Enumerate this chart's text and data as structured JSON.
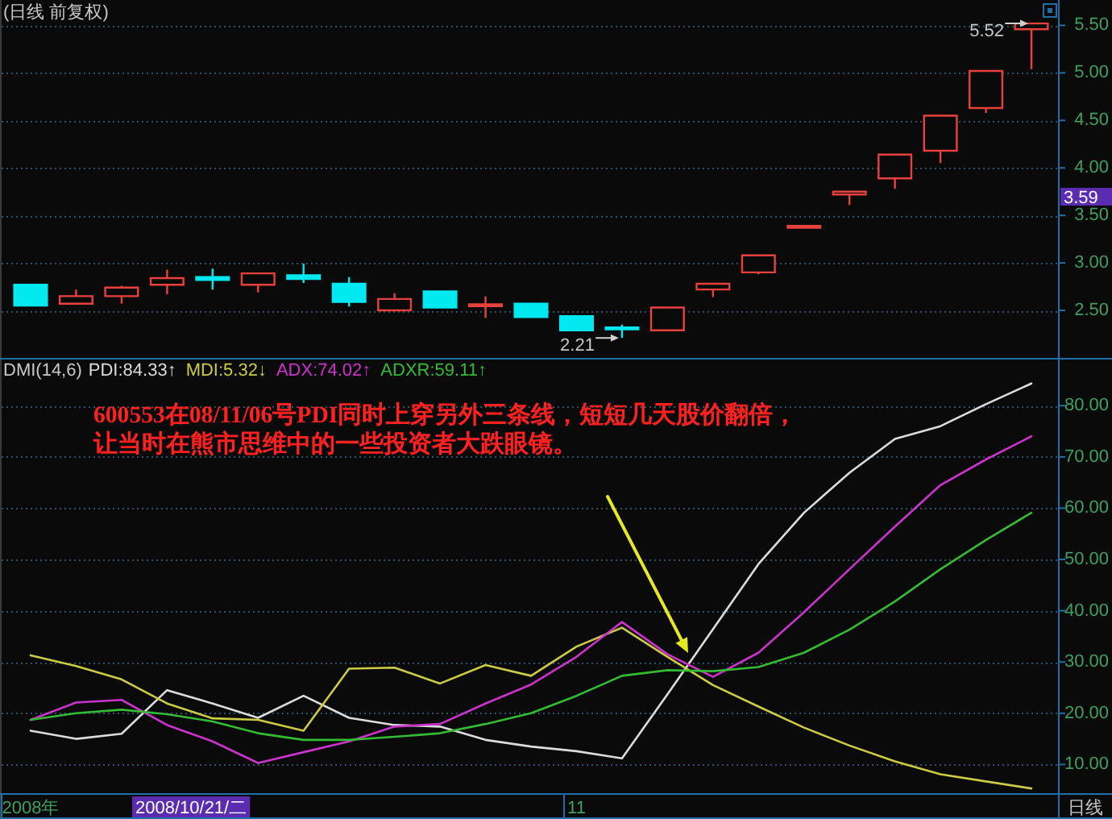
{
  "chart_data": [
    {
      "type": "candlestick",
      "title": "(日线 前复权)",
      "categories": [
        null,
        null,
        null,
        null,
        null,
        null,
        null,
        null,
        null,
        null,
        null,
        null,
        null,
        null,
        null,
        null,
        null,
        null,
        null,
        null,
        null,
        null,
        null
      ],
      "ohlc": [
        [
          2.77,
          2.77,
          2.55,
          2.55
        ],
        [
          2.57,
          2.72,
          2.57,
          2.65
        ],
        [
          2.65,
          2.76,
          2.57,
          2.74
        ],
        [
          2.77,
          2.93,
          2.67,
          2.84
        ],
        [
          2.85,
          2.94,
          2.72,
          2.82
        ],
        [
          2.77,
          2.89,
          2.69,
          2.89
        ],
        [
          2.87,
          2.99,
          2.79,
          2.83
        ],
        [
          2.78,
          2.85,
          2.54,
          2.59
        ],
        [
          2.5,
          2.68,
          2.5,
          2.62
        ],
        [
          2.7,
          2.7,
          2.53,
          2.53
        ],
        [
          2.55,
          2.65,
          2.42,
          2.56
        ],
        [
          2.57,
          2.57,
          2.43,
          2.43
        ],
        [
          2.44,
          2.44,
          2.29,
          2.29
        ],
        [
          2.32,
          2.35,
          2.21,
          2.3
        ],
        [
          2.29,
          2.53,
          2.28,
          2.53
        ],
        [
          2.72,
          2.78,
          2.64,
          2.78
        ],
        [
          2.9,
          3.08,
          2.88,
          3.08
        ],
        [
          3.38,
          3.38,
          3.38,
          3.38
        ],
        [
          3.72,
          3.75,
          3.61,
          3.75
        ],
        [
          3.89,
          4.14,
          3.78,
          4.14
        ],
        [
          4.18,
          4.55,
          4.05,
          4.55
        ],
        [
          4.63,
          5.02,
          4.58,
          5.02
        ],
        [
          5.46,
          5.52,
          5.04,
          5.52
        ]
      ],
      "colors": [
        "#00e8f0",
        "#e8403c",
        "#e8403c",
        "#e8403c",
        "#00e8f0",
        "#e8403c",
        "#00e8f0",
        "#00e8f0",
        "#e8403c",
        "#00e8f0",
        "#e8403c",
        "#00e8f0",
        "#00e8f0",
        "#00e8f0",
        "#e8403c",
        "#e8403c",
        "#e8403c",
        "#e8403c",
        "#e8403c",
        "#e8403c",
        "#e8403c",
        "#e8403c",
        "#e8403c"
      ],
      "ylim": [
        2.0,
        5.75
      ],
      "yticks": [
        {
          "value": 2.5,
          "label": "2.50"
        },
        {
          "value": 3,
          "label": "3.00"
        },
        {
          "value": 3.5,
          "label": "3.50"
        },
        {
          "value": 4,
          "label": "4.00"
        },
        {
          "value": 4.5,
          "label": "4.50"
        },
        {
          "value": 5,
          "label": "5.00"
        },
        {
          "value": 5.5,
          "label": "5.50"
        }
      ],
      "grid": "y",
      "tick_labels": "y",
      "annotations": [
        "5.52",
        "2.21",
        "3.59"
      ]
    },
    {
      "type": "line",
      "title": "DMI(14,6)",
      "categories": [
        "2008年",
        null,
        null,
        null,
        null,
        null,
        null,
        null,
        null,
        null,
        null,
        null,
        "11",
        null,
        null,
        null,
        null,
        null,
        null,
        null,
        null,
        null,
        null
      ],
      "series": [
        {
          "name": "PDI:84.33↑",
          "color": "#dcdcdc",
          "values": [
            16.6,
            15.0,
            16.0,
            24.5,
            21.9,
            19.1,
            23.4,
            19.1,
            17.7,
            17.4,
            14.8,
            13.5,
            12.6,
            11.2,
            23.7,
            36.4,
            49.1,
            59.1,
            66.9,
            73.5,
            76.0,
            80.3,
            84.33
          ]
        },
        {
          "name": "MDI:5.32↓",
          "color": "#cccc44",
          "values": [
            31.3,
            29.2,
            26.6,
            21.9,
            19.0,
            18.7,
            16.6,
            28.7,
            28.9,
            25.8,
            29.4,
            27.3,
            33.0,
            36.7,
            31.0,
            25.5,
            21.3,
            17.2,
            13.7,
            10.6,
            8.1,
            6.7,
            5.32
          ]
        },
        {
          "name": "ADX:74.02↑",
          "color": "#cc33cc",
          "values": [
            18.7,
            22.1,
            22.6,
            17.7,
            14.5,
            10.3,
            12.4,
            14.5,
            17.4,
            17.9,
            21.9,
            25.6,
            31.0,
            37.8,
            31.5,
            27.1,
            31.8,
            39.7,
            48.1,
            56.4,
            64.5,
            69.5,
            74.02
          ]
        },
        {
          "name": "ADXR:59.11↑",
          "color": "#33bb33",
          "values": [
            18.7,
            20.0,
            20.7,
            19.8,
            18.4,
            16.1,
            14.8,
            14.8,
            15.4,
            16.1,
            17.9,
            20.0,
            23.4,
            27.3,
            28.4,
            28.2,
            29.0,
            31.8,
            36.3,
            41.8,
            48.1,
            53.8,
            59.11
          ]
        }
      ],
      "ylim": [
        4.4,
        89
      ],
      "yticks": [
        {
          "value": 10,
          "label": "10.00"
        },
        {
          "value": 20,
          "label": "20.00"
        },
        {
          "value": 30,
          "label": "30.00"
        },
        {
          "value": 40,
          "label": "40.00"
        },
        {
          "value": 50,
          "label": "50.00"
        },
        {
          "value": 60,
          "label": "60.00"
        },
        {
          "value": 70,
          "label": "70.00"
        },
        {
          "value": 80,
          "label": "80.00"
        }
      ],
      "grid": "y",
      "legend": "top left",
      "annotations": [
        "600553在08/11/06号PDI同时上穿另外三条线，短短几天股价翻倍，让当时在熊市思维中的一些投资者大跌眼镜。",
        "2008/10/21/二",
        "日线"
      ]
    }
  ]
}
